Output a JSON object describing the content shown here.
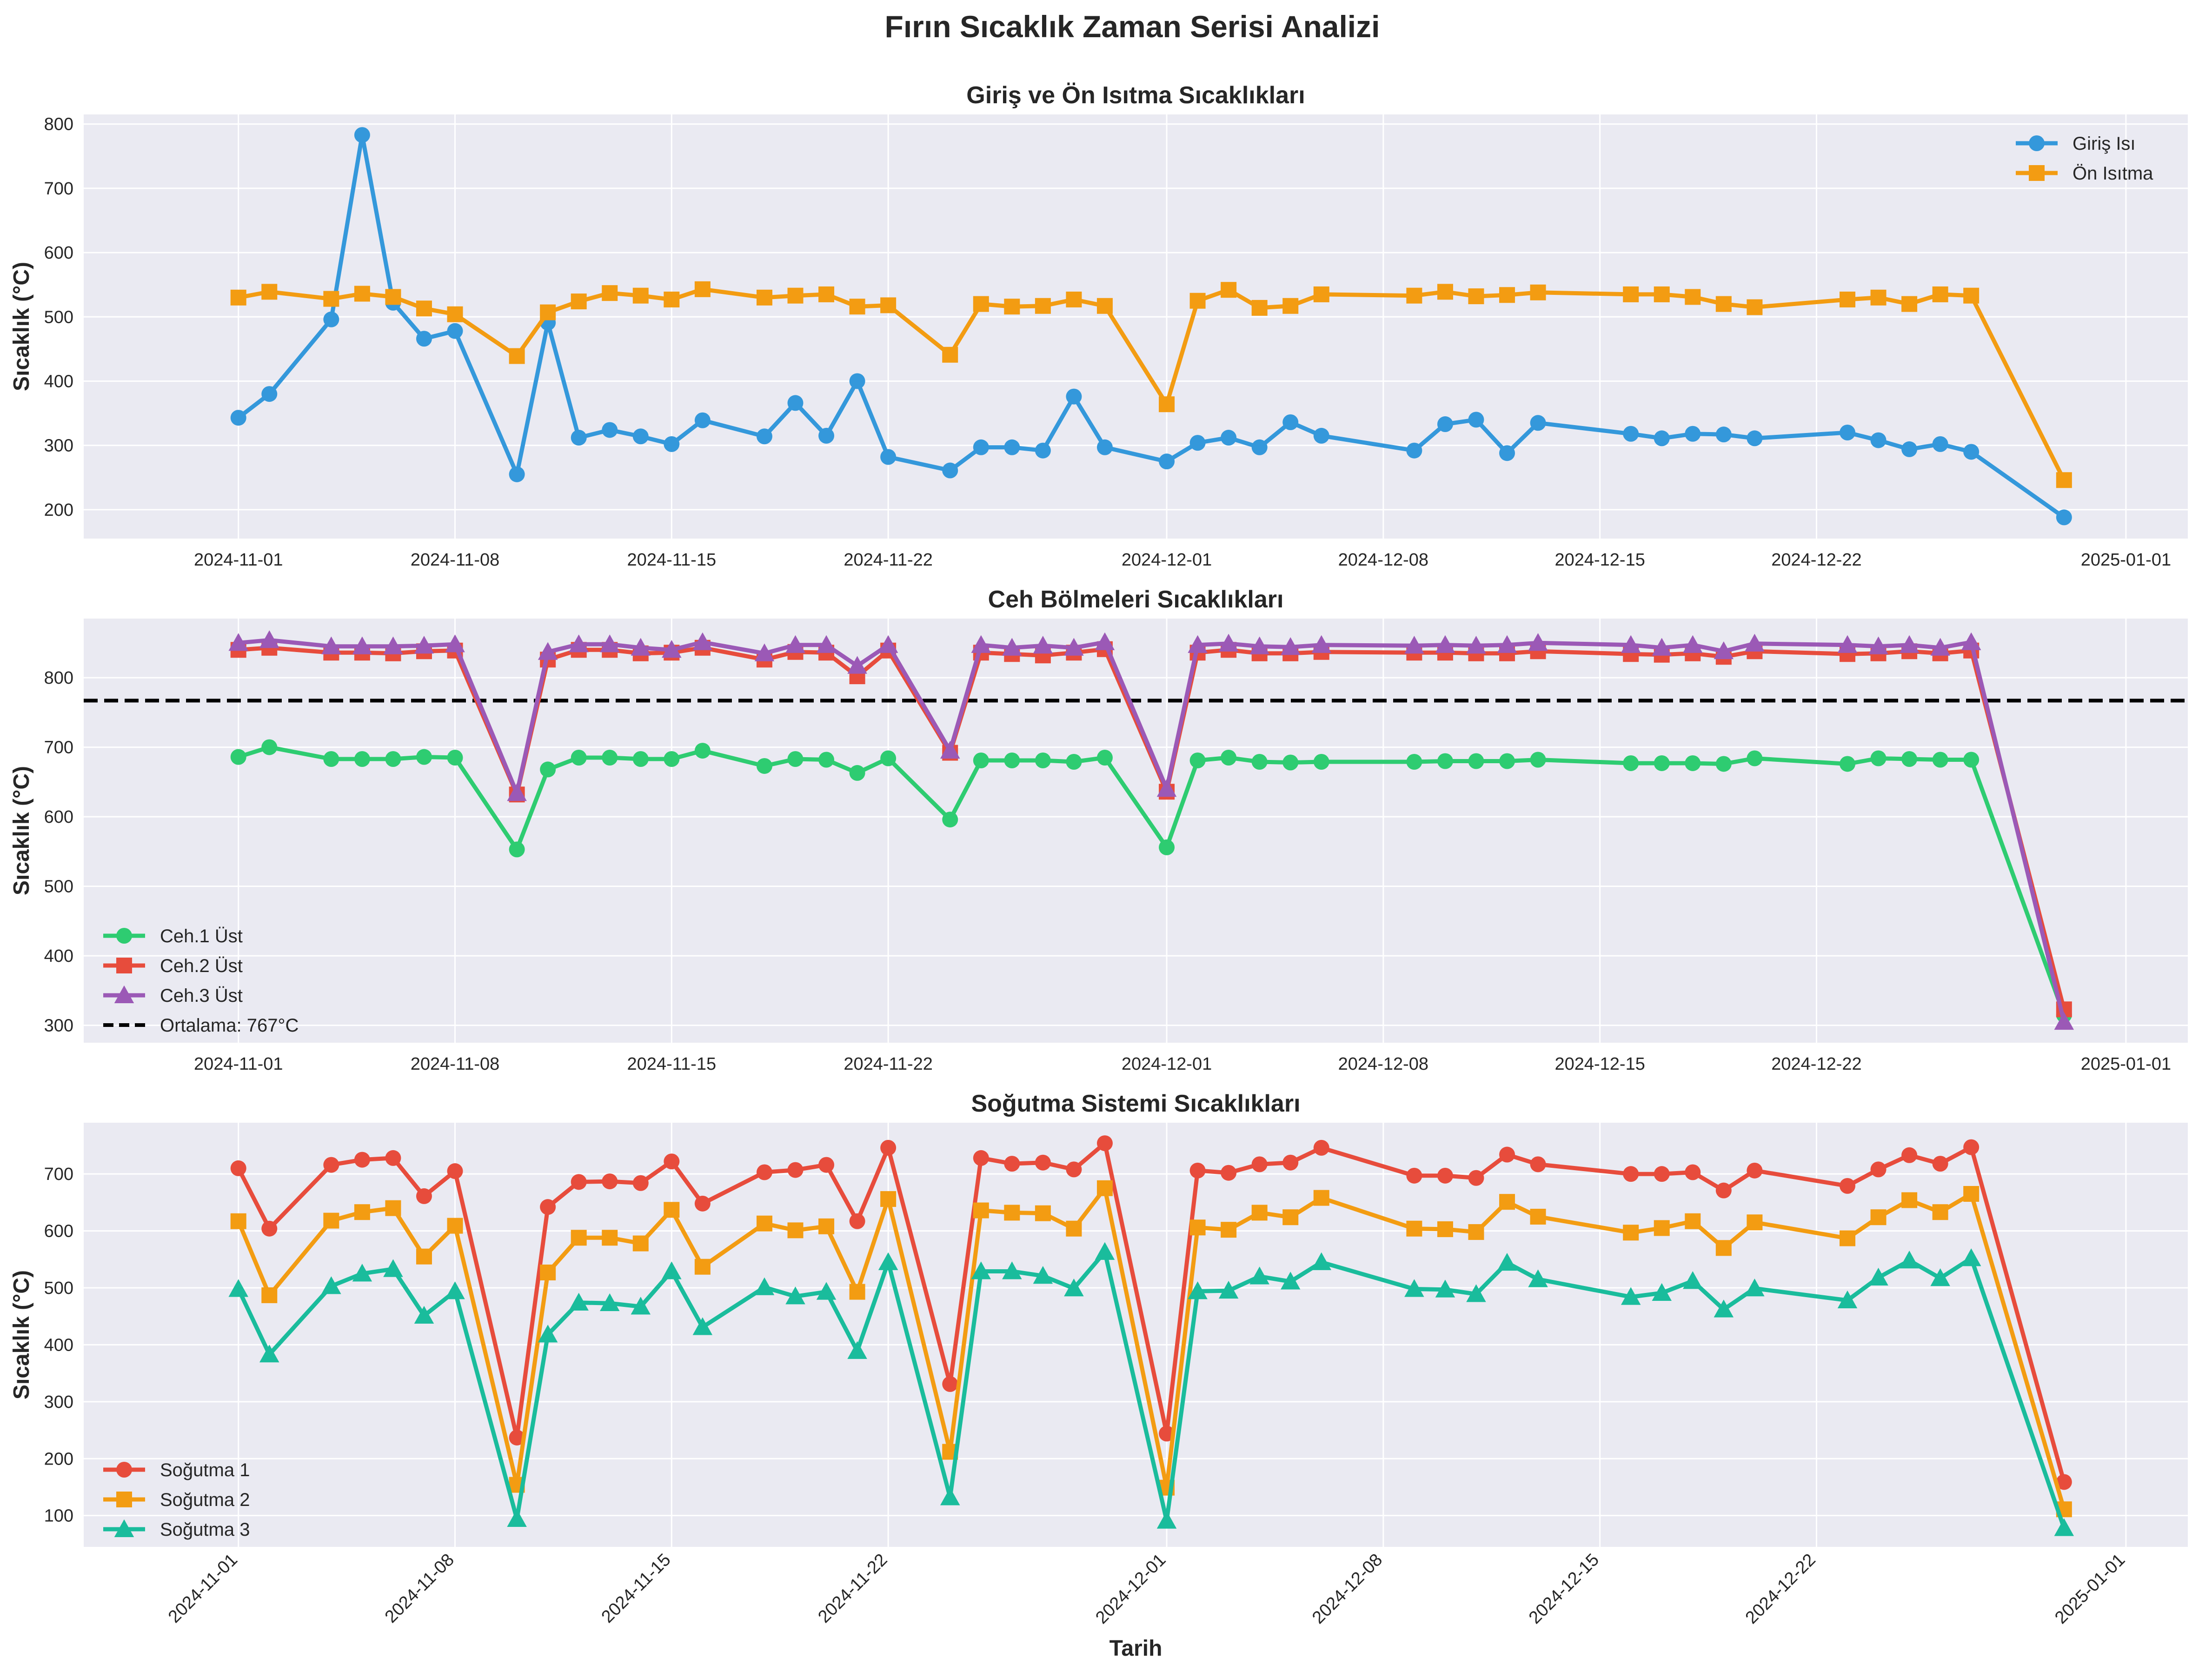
{
  "figure_title": "Fırın Sıcaklık Zaman Serisi Analizi",
  "x_dates": [
    "2024-11-01",
    "2024-11-02",
    "2024-11-04",
    "2024-11-05",
    "2024-11-06",
    "2024-11-07",
    "2024-11-08",
    "2024-11-10",
    "2024-11-11",
    "2024-11-12",
    "2024-11-13",
    "2024-11-14",
    "2024-11-15",
    "2024-11-16",
    "2024-11-18",
    "2024-11-19",
    "2024-11-20",
    "2024-11-21",
    "2024-11-22",
    "2024-11-24",
    "2024-11-25",
    "2024-11-26",
    "2024-11-27",
    "2024-11-28",
    "2024-11-29",
    "2024-12-01",
    "2024-12-02",
    "2024-12-03",
    "2024-12-04",
    "2024-12-05",
    "2024-12-06",
    "2024-12-09",
    "2024-12-10",
    "2024-12-11",
    "2024-12-12",
    "2024-12-13",
    "2024-12-16",
    "2024-12-17",
    "2024-12-18",
    "2024-12-19",
    "2024-12-20",
    "2024-12-23",
    "2024-12-24",
    "2024-12-25",
    "2024-12-26",
    "2024-12-27",
    "2024-12-30"
  ],
  "x_tick_labels": [
    "2024-11-01",
    "2024-11-08",
    "2024-11-15",
    "2024-11-22",
    "2024-12-01",
    "2024-12-08",
    "2024-12-15",
    "2024-12-22",
    "2025-01-01"
  ],
  "xlabel": "Tarih",
  "chart_data": [
    {
      "type": "line",
      "title": "Giriş ve Ön Isıtma Sıcaklıkları",
      "xlabel": "",
      "ylabel": "Sıcaklık (°C)",
      "ylim": [
        155,
        815
      ],
      "yticks": [
        200,
        300,
        400,
        500,
        600,
        700,
        800
      ],
      "legend_position": "upper right",
      "series": [
        {
          "name": "Giriş Isı",
          "color": "#3498db",
          "marker": "circle",
          "values": [
            343,
            380,
            496,
            783,
            522,
            466,
            478,
            255,
            491,
            312,
            324,
            314,
            302,
            339,
            314,
            366,
            315,
            400,
            282,
            261,
            297,
            297,
            292,
            376,
            297,
            275,
            304,
            312,
            297,
            336,
            315,
            292,
            333,
            340,
            288,
            335,
            318,
            311,
            318,
            317,
            311,
            320,
            308,
            294,
            302,
            290,
            188
          ]
        },
        {
          "name": "Ön Isıtma",
          "color": "#f39c12",
          "marker": "square",
          "values": [
            530,
            539,
            528,
            536,
            531,
            513,
            504,
            439,
            507,
            524,
            537,
            533,
            527,
            543,
            530,
            533,
            535,
            516,
            518,
            441,
            520,
            516,
            517,
            527,
            517,
            364,
            525,
            542,
            514,
            517,
            535,
            533,
            539,
            532,
            534,
            538,
            535,
            535,
            531,
            520,
            515,
            527,
            530,
            520,
            535,
            533,
            246
          ]
        }
      ]
    },
    {
      "type": "line",
      "title": "Ceh Bölmeleri Sıcaklıkları",
      "xlabel": "",
      "ylabel": "Sıcaklık (°C)",
      "ylim": [
        275,
        885
      ],
      "yticks": [
        300,
        400,
        500,
        600,
        700,
        800
      ],
      "legend_position": "lower left",
      "reference_line": {
        "label": "Ortalama: 767°C",
        "value": 767
      },
      "series": [
        {
          "name": "Ceh.1 Üst",
          "color": "#2ecc71",
          "marker": "circle",
          "values": [
            686,
            700,
            683,
            683,
            683,
            686,
            685,
            553,
            668,
            685,
            685,
            683,
            683,
            695,
            673,
            683,
            682,
            663,
            684,
            596,
            681,
            681,
            681,
            679,
            685,
            556,
            681,
            685,
            679,
            678,
            679,
            679,
            680,
            680,
            680,
            682,
            677,
            677,
            677,
            676,
            684,
            676,
            684,
            683,
            682,
            682,
            315
          ]
        },
        {
          "name": "Ceh.2 Üst",
          "color": "#e74c3c",
          "marker": "square",
          "values": [
            840,
            843,
            836,
            836,
            835,
            838,
            839,
            632,
            826,
            840,
            840,
            835,
            836,
            843,
            826,
            837,
            836,
            802,
            839,
            692,
            836,
            834,
            832,
            836,
            841,
            636,
            836,
            840,
            835,
            835,
            837,
            836,
            836,
            835,
            835,
            838,
            834,
            833,
            835,
            830,
            838,
            834,
            835,
            838,
            835,
            839,
            323
          ]
        },
        {
          "name": "Ceh.3 Üst",
          "color": "#9b59b6",
          "marker": "triangle",
          "values": [
            850,
            854,
            845,
            845,
            845,
            846,
            848,
            634,
            837,
            848,
            848,
            843,
            840,
            851,
            835,
            847,
            847,
            817,
            847,
            695,
            847,
            843,
            846,
            843,
            851,
            640,
            847,
            849,
            845,
            844,
            847,
            846,
            847,
            846,
            847,
            850,
            847,
            843,
            847,
            838,
            849,
            847,
            845,
            847,
            843,
            851,
            305
          ]
        }
      ]
    },
    {
      "type": "line",
      "title": "Soğutma Sistemi Sıcaklıkları",
      "xlabel": "Tarih",
      "ylabel": "Sıcaklık (°C)",
      "ylim": [
        45,
        790
      ],
      "yticks": [
        100,
        200,
        300,
        400,
        500,
        600,
        700
      ],
      "legend_position": "lower left",
      "series": [
        {
          "name": "Soğutma 1",
          "color": "#e74c3c",
          "marker": "circle",
          "values": [
            710,
            604,
            716,
            725,
            728,
            661,
            705,
            237,
            642,
            686,
            687,
            684,
            722,
            648,
            703,
            707,
            716,
            617,
            746,
            331,
            728,
            718,
            720,
            708,
            754,
            244,
            706,
            702,
            717,
            720,
            746,
            697,
            697,
            693,
            734,
            717,
            700,
            700,
            703,
            671,
            706,
            679,
            708,
            733,
            718,
            747,
            159
          ]
        },
        {
          "name": "Soğutma 2",
          "color": "#f39c12",
          "marker": "square",
          "values": [
            617,
            487,
            618,
            633,
            640,
            555,
            609,
            154,
            527,
            588,
            588,
            578,
            637,
            537,
            613,
            601,
            608,
            493,
            656,
            212,
            636,
            632,
            631,
            604,
            675,
            149,
            606,
            602,
            632,
            624,
            658,
            604,
            603,
            598,
            651,
            625,
            597,
            605,
            617,
            570,
            615,
            587,
            624,
            654,
            633,
            665,
            111
          ]
        },
        {
          "name": "Soğutma 3",
          "color": "#1abc9c",
          "marker": "triangle",
          "values": [
            498,
            383,
            503,
            525,
            533,
            451,
            494,
            94,
            418,
            474,
            473,
            467,
            529,
            431,
            501,
            485,
            493,
            389,
            545,
            132,
            529,
            529,
            521,
            499,
            563,
            91,
            494,
            495,
            520,
            511,
            545,
            498,
            497,
            489,
            544,
            515,
            484,
            491,
            512,
            462,
            499,
            478,
            518,
            548,
            517,
            552,
            78
          ]
        }
      ]
    }
  ],
  "colors": {
    "panel_bg": "#eaeaf2",
    "grid": "#ffffff",
    "text": "#262626"
  }
}
